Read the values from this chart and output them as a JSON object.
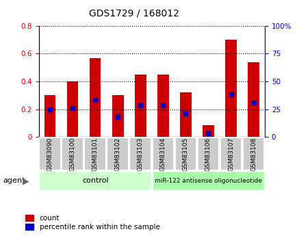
{
  "title": "GDS1729 / 168012",
  "samples": [
    "GSM83090",
    "GSM83100",
    "GSM83101",
    "GSM83102",
    "GSM83103",
    "GSM83104",
    "GSM83105",
    "GSM83106",
    "GSM83107",
    "GSM83108"
  ],
  "count_values": [
    0.3,
    0.4,
    0.57,
    0.3,
    0.45,
    0.45,
    0.32,
    0.085,
    0.7,
    0.54
  ],
  "percentile_values": [
    0.2,
    0.21,
    0.265,
    0.145,
    0.225,
    0.225,
    0.17,
    0.025,
    0.305,
    0.245
  ],
  "bar_color": "#cc0000",
  "percentile_color": "#0000cc",
  "ylim_left": [
    0,
    0.8
  ],
  "ylim_right": [
    0,
    100
  ],
  "yticks_left": [
    0,
    0.2,
    0.4,
    0.6,
    0.8
  ],
  "yticks_right": [
    0,
    25,
    50,
    75,
    100
  ],
  "ytick_labels_left": [
    "0",
    "0.2",
    "0.4",
    "0.6",
    "0.8"
  ],
  "ytick_labels_right": [
    "0",
    "25",
    "50",
    "75",
    "100%"
  ],
  "grid_color": "#000000",
  "agent_label": "agent",
  "group1_label": "control",
  "group2_label": "miR-122 antisense oligonucleotide",
  "group1_color": "#ccffcc",
  "group2_color": "#aaffaa",
  "group1_count": 5,
  "group2_count": 5,
  "legend_count_label": "count",
  "legend_pct_label": "percentile rank within the sample",
  "bar_width": 0.5,
  "tick_label_bg": "#cccccc"
}
